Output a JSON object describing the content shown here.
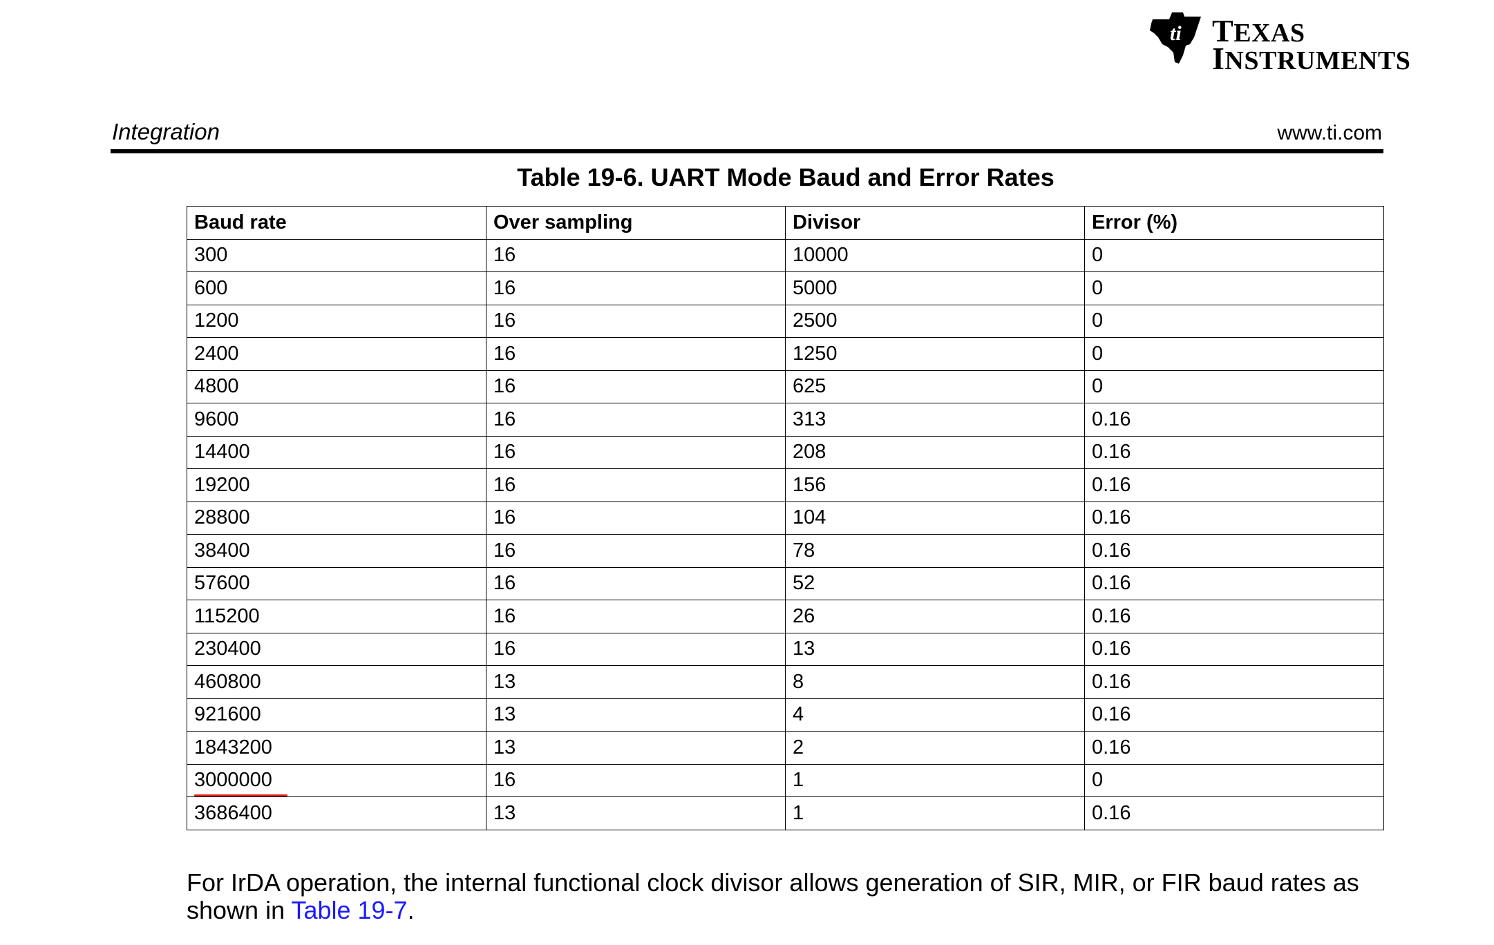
{
  "header": {
    "logo_line1": "Texas",
    "logo_line2": "Instruments",
    "section": "Integration",
    "site": "www.ti.com"
  },
  "table": {
    "title": "Table 19-6. UART Mode Baud and Error Rates",
    "columns": [
      "Baud rate",
      "Over sampling",
      "Divisor",
      "Error (%)"
    ],
    "rows": [
      [
        "300",
        "16",
        "10000",
        "0"
      ],
      [
        "600",
        "16",
        "5000",
        "0"
      ],
      [
        "1200",
        "16",
        "2500",
        "0"
      ],
      [
        "2400",
        "16",
        "1250",
        "0"
      ],
      [
        "4800",
        "16",
        "625",
        "0"
      ],
      [
        "9600",
        "16",
        "313",
        "0.16"
      ],
      [
        "14400",
        "16",
        "208",
        "0.16"
      ],
      [
        "19200",
        "16",
        "156",
        "0.16"
      ],
      [
        "28800",
        "16",
        "104",
        "0.16"
      ],
      [
        "38400",
        "16",
        "78",
        "0.16"
      ],
      [
        "57600",
        "16",
        "52",
        "0.16"
      ],
      [
        "115200",
        "16",
        "26",
        "0.16"
      ],
      [
        "230400",
        "16",
        "13",
        "0.16"
      ],
      [
        "460800",
        "13",
        "8",
        "0.16"
      ],
      [
        "921600",
        "13",
        "4",
        "0.16"
      ],
      [
        "1843200",
        "13",
        "2",
        "0.16"
      ],
      [
        "3000000",
        "16",
        "1",
        "0"
      ],
      [
        "3686400",
        "13",
        "1",
        "0.16"
      ]
    ]
  },
  "paragraph": {
    "text_before": "For IrDA operation, the internal functional clock divisor allows generation of SIR, MIR, or FIR baud rates as shown in ",
    "link": "Table 19-7",
    "text_after": "."
  },
  "colors": {
    "link": "#1a1aff",
    "underline_mark": "#e0221b"
  },
  "icons": {
    "logo": "texas-instruments-logo"
  }
}
